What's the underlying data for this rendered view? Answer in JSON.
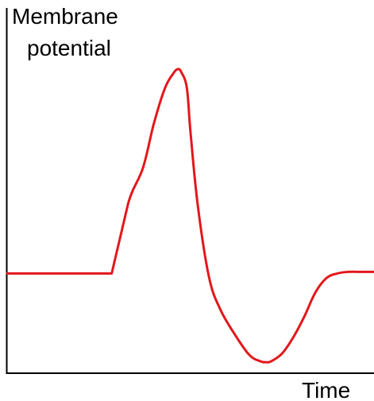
{
  "chart_data": {
    "type": "line",
    "title": "",
    "ylabel_lines": [
      "Membrane",
      "potential"
    ],
    "xlabel": "Time",
    "ticks": [],
    "grid": false,
    "legend": null,
    "xlim": [
      0,
      100
    ],
    "ylim": [
      0,
      100
    ],
    "series": [
      {
        "x": [
          0,
          12,
          28.5,
          33,
          37,
          40,
          43,
          45.2,
          46.5,
          47.5,
          49,
          50,
          52,
          55,
          58,
          62,
          66,
          69,
          70.5,
          72,
          75,
          78,
          81,
          84,
          87,
          90,
          93,
          96,
          100
        ],
        "y": [
          31,
          31,
          31,
          53,
          64,
          78,
          89,
          93.5,
          95,
          94,
          89,
          75,
          52,
          30,
          20,
          12,
          5.5,
          3.5,
          3.2,
          3.5,
          6,
          11,
          17.5,
          25,
          29.5,
          31,
          31.5,
          31.5,
          31.5
        ],
        "color": "#e3171b"
      }
    ]
  }
}
